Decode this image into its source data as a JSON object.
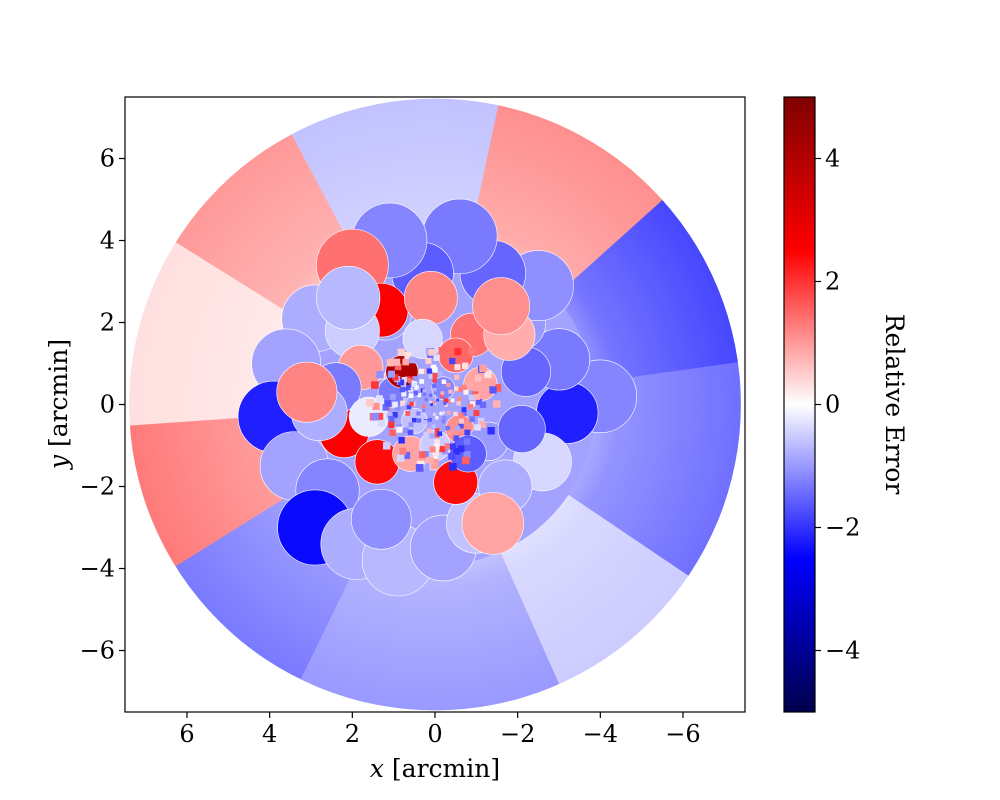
{
  "chart_data": {
    "type": "heatmap",
    "title": "",
    "xlabel_var": "x",
    "xlabel_unit": " [arcmin]",
    "ylabel_var": "y",
    "ylabel_unit": " [arcmin]",
    "xlim": [
      7.5,
      -7.5
    ],
    "ylim": [
      -7.5,
      7.5
    ],
    "x_inverted": true,
    "xticks": [
      6,
      4,
      2,
      0,
      -2,
      -4,
      -6
    ],
    "yticks": [
      6,
      4,
      2,
      0,
      -2,
      -4,
      -6
    ],
    "xtick_labels": [
      "6",
      "4",
      "2",
      "0",
      "−2",
      "−4",
      "−6"
    ],
    "ytick_labels": [
      "6",
      "4",
      "2",
      "0",
      "−2",
      "−4",
      "−6"
    ],
    "grid": false,
    "map_radius": 7.4,
    "colorbar": {
      "label": "Relative Error",
      "range": [
        -5,
        5
      ],
      "colormap": "seismic",
      "ticks": [
        4,
        2,
        0,
        -2,
        -4
      ],
      "tick_labels": [
        "4",
        "2",
        "0",
        "−2",
        "−4"
      ]
    },
    "colormap_stops": [
      "#00004c",
      "#0000ff",
      "#ffffff",
      "#ff0000",
      "#7f0000"
    ],
    "outer_ring_sectors": [
      {
        "from_deg": 78,
        "to_deg": 118,
        "value": -0.6
      },
      {
        "from_deg": 118,
        "to_deg": 148,
        "value": 1.0
      },
      {
        "from_deg": 148,
        "to_deg": 184,
        "value": 0.3
      },
      {
        "from_deg": 184,
        "to_deg": 212,
        "value": 1.3
      },
      {
        "from_deg": 212,
        "to_deg": 244,
        "value": -1.3
      },
      {
        "from_deg": 244,
        "to_deg": 294,
        "value": -1.0
      },
      {
        "from_deg": 294,
        "to_deg": 326,
        "value": -0.5
      },
      {
        "from_deg": 326,
        "to_deg": 368,
        "value": -1.4
      },
      {
        "from_deg": 368,
        "to_deg": 402,
        "value": -1.8
      },
      {
        "from_deg": 402,
        "to_deg": 438,
        "value": 1.1
      }
    ],
    "cells": [
      {
        "x": -4.0,
        "y": 0.2,
        "v": -1.2
      },
      {
        "x": -3.2,
        "y": -0.2,
        "v": -2.2
      },
      {
        "x": -3.0,
        "y": 1.1,
        "v": -1.3
      },
      {
        "x": -2.6,
        "y": -1.4,
        "v": -0.4
      },
      {
        "x": -2.2,
        "y": 0.8,
        "v": -1.5
      },
      {
        "x": -2.0,
        "y": 2.0,
        "v": -1.0
      },
      {
        "x": -2.5,
        "y": 2.9,
        "v": -1.1
      },
      {
        "x": -1.4,
        "y": 3.2,
        "v": -1.5
      },
      {
        "x": -0.6,
        "y": 4.1,
        "v": -1.3
      },
      {
        "x": 0.3,
        "y": 3.2,
        "v": -1.6
      },
      {
        "x": 1.1,
        "y": 4.0,
        "v": -1.2
      },
      {
        "x": 2.0,
        "y": 3.4,
        "v": 1.4
      },
      {
        "x": 2.9,
        "y": 2.1,
        "v": -0.8
      },
      {
        "x": 3.6,
        "y": 1.0,
        "v": -0.9
      },
      {
        "x": 3.9,
        "y": -0.3,
        "v": -2.2
      },
      {
        "x": 3.4,
        "y": -1.5,
        "v": -0.9
      },
      {
        "x": 2.6,
        "y": -2.1,
        "v": -1.2
      },
      {
        "x": 2.9,
        "y": -3.0,
        "v": -2.4
      },
      {
        "x": 1.9,
        "y": -3.4,
        "v": -0.8
      },
      {
        "x": 0.9,
        "y": -3.8,
        "v": -0.7
      },
      {
        "x": -0.2,
        "y": -3.5,
        "v": -0.9
      },
      {
        "x": -1.0,
        "y": -2.9,
        "v": -0.6
      },
      {
        "x": -1.7,
        "y": -2.0,
        "v": -0.8
      },
      {
        "x": -0.5,
        "y": -1.9,
        "v": 2.4
      },
      {
        "x": 1.3,
        "y": -2.8,
        "v": -1.1
      },
      {
        "x": 2.2,
        "y": -0.7,
        "v": 2.6
      },
      {
        "x": 1.4,
        "y": -1.4,
        "v": 2.4
      },
      {
        "x": 0.6,
        "y": -1.2,
        "v": 0.9
      },
      {
        "x": 1.2,
        "y": 2.2,
        "v": -0.9
      },
      {
        "x": 1.3,
        "y": 2.3,
        "v": 2.6
      },
      {
        "x": 2.0,
        "y": 1.8,
        "v": -0.5
      },
      {
        "x": 0.1,
        "y": 2.6,
        "v": 1.2
      },
      {
        "x": -0.9,
        "y": 1.7,
        "v": 1.4
      },
      {
        "x": -1.8,
        "y": 1.7,
        "v": 0.8
      },
      {
        "x": -1.1,
        "y": 0.5,
        "v": 0.9
      },
      {
        "x": -0.6,
        "y": -0.6,
        "v": 1.1
      },
      {
        "x": 1.8,
        "y": 0.9,
        "v": 1.0
      },
      {
        "x": 1.0,
        "y": 0.3,
        "v": -1.3
      },
      {
        "x": 0.8,
        "y": 0.8,
        "v": 4.1
      },
      {
        "x": 2.4,
        "y": 0.4,
        "v": -1.3
      },
      {
        "x": 0.3,
        "y": 1.6,
        "v": -0.4
      },
      {
        "x": 1.6,
        "y": -0.3,
        "v": -0.2
      },
      {
        "x": -1.3,
        "y": -0.9,
        "v": -1.0
      },
      {
        "x": -0.2,
        "y": 0.4,
        "v": -1.2
      },
      {
        "x": -0.5,
        "y": 1.2,
        "v": 1.5
      },
      {
        "x": 0.5,
        "y": -0.4,
        "v": -0.6
      },
      {
        "x": -2.1,
        "y": -0.6,
        "v": -1.5
      },
      {
        "x": -1.6,
        "y": 2.4,
        "v": 1.1
      },
      {
        "x": 2.8,
        "y": -0.2,
        "v": -0.8
      },
      {
        "x": 3.1,
        "y": 0.3,
        "v": 1.2
      },
      {
        "x": 0.0,
        "y": -1.0,
        "v": -0.5
      },
      {
        "x": -1.4,
        "y": -2.9,
        "v": 0.9
      },
      {
        "x": -0.8,
        "y": -1.2,
        "v": -1.6
      },
      {
        "x": 2.1,
        "y": 2.6,
        "v": -0.7
      }
    ]
  }
}
